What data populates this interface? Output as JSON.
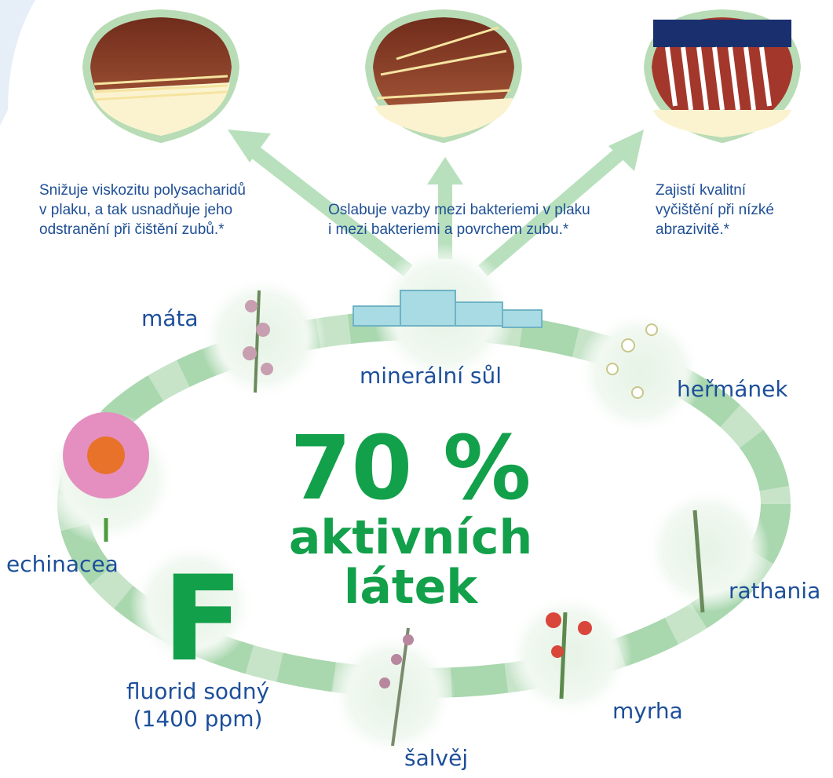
{
  "benefits": [
    {
      "lines": [
        "Snižuje viskozitu polysacharidů",
        "v plaku, a tak usnadňuje jeho",
        "odstranění při čištění zubů.*"
      ]
    },
    {
      "lines": [
        "Oslabuje vazby mezi bakteriemi v plaku",
        "i mezi bakteriemi a povrchem zubu.*"
      ]
    },
    {
      "lines": [
        "Zajistí kvalitní",
        "vyčištění při nízké",
        "abrazivitě.*"
      ]
    }
  ],
  "center": {
    "percent": "70 %",
    "lines": [
      "aktivních",
      "látek"
    ]
  },
  "ingredients": [
    {
      "label": "máta"
    },
    {
      "label": "minerální sůl"
    },
    {
      "label": "heřmánek"
    },
    {
      "label": "echinacea"
    },
    {
      "label": "rathania"
    },
    {
      "label": "myrha"
    },
    {
      "label": "šalvěj"
    },
    {
      "label": "F",
      "lines": [
        "fluorid sodný",
        "(1400 ppm)"
      ]
    }
  ]
}
